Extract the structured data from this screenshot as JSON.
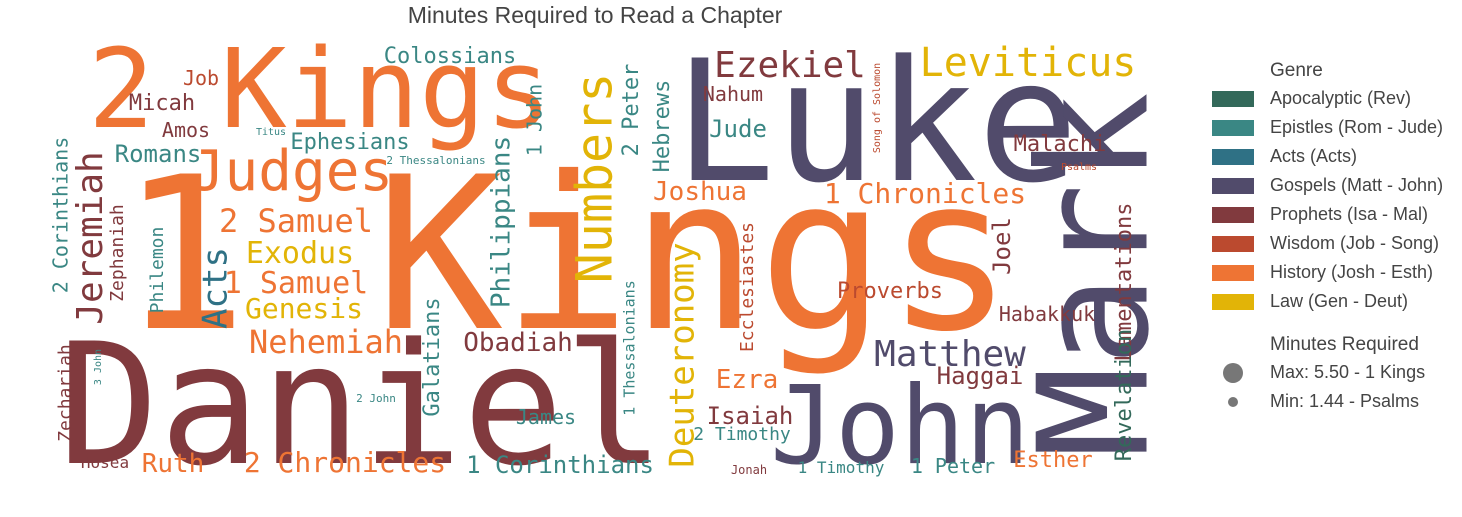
{
  "title": "Minutes Required to Read a Chapter",
  "legend": {
    "genre_title": "Genre",
    "size_title": "Minutes Required",
    "max_label": "Max: 5.50 - 1 Kings",
    "min_label": "Min: 1.44 - Psalms"
  },
  "chart_data": {
    "type": "wordcloud",
    "title": "Minutes Required to Read a Chapter",
    "value_unit": "minutes",
    "max": {
      "word": "1 Kings",
      "value": 5.5
    },
    "min": {
      "word": "Psalms",
      "value": 1.44
    },
    "genres": [
      {
        "name": "Apocalyptic (Rev)",
        "color": "#33695a"
      },
      {
        "name": "Epistles (Rom - Jude)",
        "color": "#3a8784"
      },
      {
        "name": "Acts (Acts)",
        "color": "#2f7185"
      },
      {
        "name": "Gospels (Matt - John)",
        "color": "#514b6b"
      },
      {
        "name": "Prophets (Isa - Mal)",
        "color": "#813a3e"
      },
      {
        "name": "Wisdom (Job - Song)",
        "color": "#bb4a2f"
      },
      {
        "name": "History (Josh - Esth)",
        "color": "#ee7434"
      },
      {
        "name": "Law (Gen - Deut)",
        "color": "#e2b407"
      }
    ],
    "words": [
      {
        "text": "1 Kings",
        "genre": 6
      },
      {
        "text": "Daniel",
        "genre": 4
      },
      {
        "text": "Luke",
        "genre": 3
      },
      {
        "text": "2 Kings",
        "genre": 6
      },
      {
        "text": "Mark",
        "genre": 3
      },
      {
        "text": "John",
        "genre": 3
      },
      {
        "text": "Judges",
        "genre": 6
      },
      {
        "text": "Numbers",
        "genre": 7
      },
      {
        "text": "Leviticus",
        "genre": 7
      },
      {
        "text": "Ezekiel",
        "genre": 4
      },
      {
        "text": "Jeremiah",
        "genre": 4
      },
      {
        "text": "Deuteronomy",
        "genre": 7
      },
      {
        "text": "Matthew",
        "genre": 3
      },
      {
        "text": "Nehemiah",
        "genre": 6
      },
      {
        "text": "2 Samuel",
        "genre": 6
      },
      {
        "text": "Exodus",
        "genre": 7
      },
      {
        "text": "1 Samuel",
        "genre": 6
      },
      {
        "text": "Genesis",
        "genre": 7
      },
      {
        "text": "1 Chronicles",
        "genre": 6
      },
      {
        "text": "2 Chronicles",
        "genre": 6
      },
      {
        "text": "Lamentations",
        "genre": 4
      },
      {
        "text": "Acts",
        "genre": 2
      },
      {
        "text": "Joshua",
        "genre": 6
      },
      {
        "text": "Philippians",
        "genre": 1
      },
      {
        "text": "1 Corinthians",
        "genre": 1
      },
      {
        "text": "Obadiah",
        "genre": 4
      },
      {
        "text": "Ezra",
        "genre": 6
      },
      {
        "text": "Ruth",
        "genre": 6
      },
      {
        "text": "Haggai",
        "genre": 4
      },
      {
        "text": "Isaiah",
        "genre": 4
      },
      {
        "text": "Revelation",
        "genre": 0
      },
      {
        "text": "Esther",
        "genre": 6
      },
      {
        "text": "Hebrews",
        "genre": 1
      },
      {
        "text": "2 Peter",
        "genre": 1
      },
      {
        "text": "Joel",
        "genre": 4
      },
      {
        "text": "Romans",
        "genre": 1
      },
      {
        "text": "Ephesians",
        "genre": 1
      },
      {
        "text": "Colossians",
        "genre": 1
      },
      {
        "text": "2 Corinthians",
        "genre": 1
      },
      {
        "text": "Galatians",
        "genre": 1
      },
      {
        "text": "Jude",
        "genre": 1
      },
      {
        "text": "Proverbs",
        "genre": 5
      },
      {
        "text": "Malachi",
        "genre": 4
      },
      {
        "text": "Habakkuk",
        "genre": 4
      },
      {
        "text": "Ecclesiastes",
        "genre": 5
      },
      {
        "text": "Micah",
        "genre": 4
      },
      {
        "text": "Zephaniah",
        "genre": 4
      },
      {
        "text": "Philemon",
        "genre": 1
      },
      {
        "text": "1 John",
        "genre": 1
      },
      {
        "text": "James",
        "genre": 1
      },
      {
        "text": "1 Peter",
        "genre": 1
      },
      {
        "text": "Nahum",
        "genre": 4
      },
      {
        "text": "Amos",
        "genre": 4
      },
      {
        "text": "Job",
        "genre": 5
      },
      {
        "text": "Zechariah",
        "genre": 4
      },
      {
        "text": "2 Timothy",
        "genre": 1
      },
      {
        "text": "1 Timothy",
        "genre": 1
      },
      {
        "text": "Hosea",
        "genre": 4
      },
      {
        "text": "1 Thessalonians",
        "genre": 1
      },
      {
        "text": "2 John",
        "genre": 1
      },
      {
        "text": "3 John",
        "genre": 1
      },
      {
        "text": "2 Thessalonians",
        "genre": 1
      },
      {
        "text": "Song of Solomon",
        "genre": 5
      },
      {
        "text": "Titus",
        "genre": 1
      },
      {
        "text": "Jonah",
        "genre": 4
      },
      {
        "text": "Psalms",
        "genre": 5
      }
    ]
  }
}
